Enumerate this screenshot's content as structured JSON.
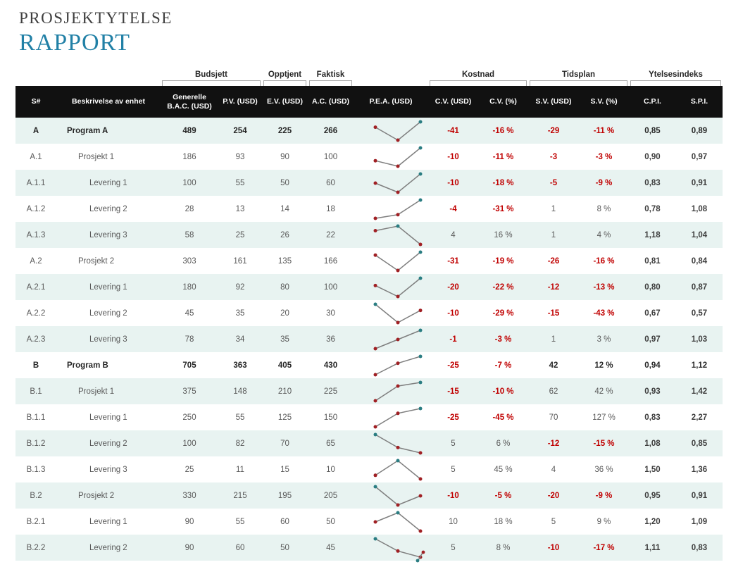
{
  "title": {
    "line1": "PROSJEKTYTELSE",
    "line2": "RAPPORT"
  },
  "colors": {
    "title-blue": "#2180a6",
    "title-dark": "#3f3f3f",
    "header-bg": "#111111",
    "header-text": "#ffffff",
    "row-stripe": "#e8f3f1",
    "negative-red": "#c00000",
    "text-gray": "#595959",
    "text-dark": "#262626",
    "index-dark": "#3d3d3d",
    "spark-line": "#7f7f7f",
    "spark-dot": "#a02024",
    "spark-high": "#2a7d82",
    "bracket-gray": "#a6a6a6"
  },
  "table": {
    "groups": [
      {
        "label": "Budsjett",
        "start": "bac",
        "end": "pv"
      },
      {
        "label": "Opptjent",
        "start": "ev",
        "end": "ev"
      },
      {
        "label": "Faktisk",
        "start": "ac",
        "end": "ac"
      },
      {
        "label": "Kostnad",
        "start": "cv",
        "end": "cvp"
      },
      {
        "label": "Tidsplan",
        "start": "sv",
        "end": "svp"
      },
      {
        "label": "Ytelsesindeks",
        "start": "cpi",
        "end": "spi"
      }
    ],
    "columns": [
      {
        "key": "id",
        "label": "S#"
      },
      {
        "key": "desc",
        "label": "Beskrivelse av enhet"
      },
      {
        "key": "bac",
        "label": "Generelle B.A.C. (USD)"
      },
      {
        "key": "pv",
        "label": "P.V. (USD)"
      },
      {
        "key": "ev",
        "label": "E.V. (USD)"
      },
      {
        "key": "ac",
        "label": "A.C. (USD)"
      },
      {
        "key": "pea",
        "label": "P.E.A. (USD)"
      },
      {
        "key": "cv",
        "label": "C.V. (USD)"
      },
      {
        "key": "cvp",
        "label": "C.V. (%)"
      },
      {
        "key": "sv",
        "label": "S.V. (USD)"
      },
      {
        "key": "svp",
        "label": "S.V. (%)"
      },
      {
        "key": "cpi",
        "label": "C.P.I."
      },
      {
        "key": "spi",
        "label": "S.P.I."
      }
    ],
    "rows": [
      {
        "id": "A",
        "desc": "Program A",
        "level": 0,
        "emphasis": true,
        "spark": [
          254,
          225,
          266
        ],
        "values": {
          "bac": "489",
          "pv": "254",
          "ev": "225",
          "ac": "266",
          "cv": "-41",
          "cvp": "-16 %",
          "sv": "-29",
          "svp": "-11 %",
          "cpi": "0,85",
          "spi": "0,89"
        }
      },
      {
        "id": "A.1",
        "desc": "Prosjekt 1",
        "level": 1,
        "emphasis": false,
        "spark": [
          93,
          90,
          100
        ],
        "values": {
          "bac": "186",
          "pv": "93",
          "ev": "90",
          "ac": "100",
          "cv": "-10",
          "cvp": "-11 %",
          "sv": "-3",
          "svp": "-3 %",
          "cpi": "0,90",
          "spi": "0,97"
        }
      },
      {
        "id": "A.1.1",
        "desc": "Levering 1",
        "level": 2,
        "emphasis": false,
        "spark": [
          55,
          50,
          60
        ],
        "values": {
          "bac": "100",
          "pv": "55",
          "ev": "50",
          "ac": "60",
          "cv": "-10",
          "cvp": "-18 %",
          "sv": "-5",
          "svp": "-9 %",
          "cpi": "0,83",
          "spi": "0,91"
        }
      },
      {
        "id": "A.1.2",
        "desc": "Levering 2",
        "level": 2,
        "emphasis": false,
        "spark": [
          13,
          14,
          18
        ],
        "values": {
          "bac": "28",
          "pv": "13",
          "ev": "14",
          "ac": "18",
          "cv": "-4",
          "cvp": "-31 %",
          "sv": "1",
          "svp": "8 %",
          "cpi": "0,78",
          "spi": "1,08"
        }
      },
      {
        "id": "A.1.3",
        "desc": "Levering 3",
        "level": 2,
        "emphasis": false,
        "spark": [
          25,
          26,
          22
        ],
        "values": {
          "bac": "58",
          "pv": "25",
          "ev": "26",
          "ac": "22",
          "cv": "4",
          "cvp": "16 %",
          "sv": "1",
          "svp": "4 %",
          "cpi": "1,18",
          "spi": "1,04"
        }
      },
      {
        "id": "A.2",
        "desc": "Prosjekt 2",
        "level": 1,
        "emphasis": false,
        "spark": [
          161,
          135,
          166
        ],
        "values": {
          "bac": "303",
          "pv": "161",
          "ev": "135",
          "ac": "166",
          "cv": "-31",
          "cvp": "-19 %",
          "sv": "-26",
          "svp": "-16 %",
          "cpi": "0,81",
          "spi": "0,84"
        }
      },
      {
        "id": "A.2.1",
        "desc": "Levering 1",
        "level": 2,
        "emphasis": false,
        "spark": [
          92,
          80,
          100
        ],
        "values": {
          "bac": "180",
          "pv": "92",
          "ev": "80",
          "ac": "100",
          "cv": "-20",
          "cvp": "-22 %",
          "sv": "-12",
          "svp": "-13 %",
          "cpi": "0,80",
          "spi": "0,87"
        }
      },
      {
        "id": "A.2.2",
        "desc": "Levering 2",
        "level": 2,
        "emphasis": false,
        "spark": [
          35,
          20,
          30
        ],
        "values": {
          "bac": "45",
          "pv": "35",
          "ev": "20",
          "ac": "30",
          "cv": "-10",
          "cvp": "-29 %",
          "sv": "-15",
          "svp": "-43 %",
          "cpi": "0,67",
          "spi": "0,57"
        }
      },
      {
        "id": "A.2.3",
        "desc": "Levering 3",
        "level": 2,
        "emphasis": false,
        "spark": [
          34,
          35,
          36
        ],
        "values": {
          "bac": "78",
          "pv": "34",
          "ev": "35",
          "ac": "36",
          "cv": "-1",
          "cvp": "-3 %",
          "sv": "1",
          "svp": "3 %",
          "cpi": "0,97",
          "spi": "1,03"
        }
      },
      {
        "id": "B",
        "desc": "Program B",
        "level": 0,
        "emphasis": true,
        "spark": [
          363,
          405,
          430
        ],
        "values": {
          "bac": "705",
          "pv": "363",
          "ev": "405",
          "ac": "430",
          "cv": "-25",
          "cvp": "-7 %",
          "sv": "42",
          "svp": "12 %",
          "cpi": "0,94",
          "spi": "1,12"
        }
      },
      {
        "id": "B.1",
        "desc": "Prosjekt 1",
        "level": 1,
        "emphasis": false,
        "spark": [
          148,
          210,
          225
        ],
        "values": {
          "bac": "375",
          "pv": "148",
          "ev": "210",
          "ac": "225",
          "cv": "-15",
          "cvp": "-10 %",
          "sv": "62",
          "svp": "42 %",
          "cpi": "0,93",
          "spi": "1,42"
        }
      },
      {
        "id": "B.1.1",
        "desc": "Levering 1",
        "level": 2,
        "emphasis": false,
        "spark": [
          55,
          125,
          150
        ],
        "values": {
          "bac": "250",
          "pv": "55",
          "ev": "125",
          "ac": "150",
          "cv": "-25",
          "cvp": "-45 %",
          "sv": "70",
          "svp": "127 %",
          "cpi": "0,83",
          "spi": "2,27"
        }
      },
      {
        "id": "B.1.2",
        "desc": "Levering 2",
        "level": 2,
        "emphasis": false,
        "spark": [
          82,
          70,
          65
        ],
        "values": {
          "bac": "100",
          "pv": "82",
          "ev": "70",
          "ac": "65",
          "cv": "5",
          "cvp": "6 %",
          "sv": "-12",
          "svp": "-15 %",
          "cpi": "1,08",
          "spi": "0,85"
        }
      },
      {
        "id": "B.1.3",
        "desc": "Levering 3",
        "level": 2,
        "emphasis": false,
        "spark": [
          11,
          15,
          10
        ],
        "values": {
          "bac": "25",
          "pv": "11",
          "ev": "15",
          "ac": "10",
          "cv": "5",
          "cvp": "45 %",
          "sv": "4",
          "svp": "36 %",
          "cpi": "1,50",
          "spi": "1,36"
        }
      },
      {
        "id": "B.2",
        "desc": "Prosjekt 2",
        "level": 1,
        "emphasis": false,
        "spark": [
          215,
          195,
          205
        ],
        "values": {
          "bac": "330",
          "pv": "215",
          "ev": "195",
          "ac": "205",
          "cv": "-10",
          "cvp": "-5 %",
          "sv": "-20",
          "svp": "-9 %",
          "cpi": "0,95",
          "spi": "0,91"
        }
      },
      {
        "id": "B.2.1",
        "desc": "Levering 1",
        "level": 2,
        "emphasis": false,
        "spark": [
          55,
          60,
          50
        ],
        "values": {
          "bac": "90",
          "pv": "55",
          "ev": "60",
          "ac": "50",
          "cv": "10",
          "cvp": "18 %",
          "sv": "5",
          "svp": "9 %",
          "cpi": "1,20",
          "spi": "1,09"
        }
      },
      {
        "id": "B.2.2",
        "desc": "Levering 2",
        "level": 2,
        "emphasis": false,
        "spark": [
          60,
          50,
          45
        ],
        "values": {
          "bac": "90",
          "pv": "60",
          "ev": "50",
          "ac": "45",
          "cv": "5",
          "cvp": "8 %",
          "sv": "-10",
          "svp": "-17 %",
          "cpi": "1,11",
          "spi": "0,83"
        }
      }
    ]
  }
}
